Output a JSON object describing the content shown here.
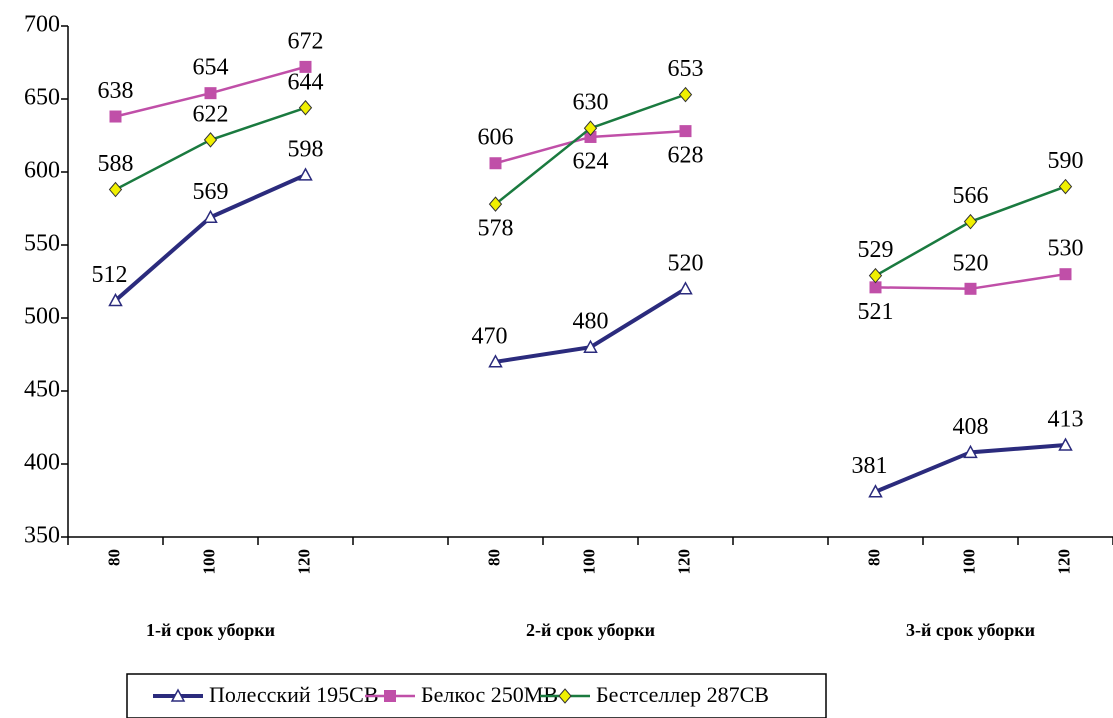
{
  "chart_data": {
    "type": "line",
    "categories": [
      "80",
      "100",
      "120",
      null,
      "80",
      "100",
      "120",
      null,
      "80",
      "100",
      "120"
    ],
    "group_labels": [
      "1-й срок уборки",
      "2-й срок уборки",
      "3-й срок уборки"
    ],
    "series": [
      {
        "name": "Полесский 195СВ",
        "color": "#2b2b7d",
        "marker": "triangle",
        "values": [
          512,
          569,
          598,
          null,
          470,
          480,
          520,
          null,
          381,
          408,
          413
        ]
      },
      {
        "name": "Белкос 250МВ",
        "color": "#c04fa8",
        "marker": "square",
        "values": [
          638,
          654,
          672,
          null,
          606,
          624,
          628,
          null,
          521,
          520,
          530
        ]
      },
      {
        "name": "Бестселлер 287СВ",
        "color": "#1a7a3f",
        "marker": "diamond",
        "values": [
          588,
          622,
          644,
          null,
          578,
          630,
          653,
          null,
          529,
          566,
          590
        ]
      }
    ],
    "ylim": [
      350,
      700
    ],
    "yticks": [
      350,
      400,
      450,
      500,
      550,
      600,
      650,
      700
    ]
  }
}
